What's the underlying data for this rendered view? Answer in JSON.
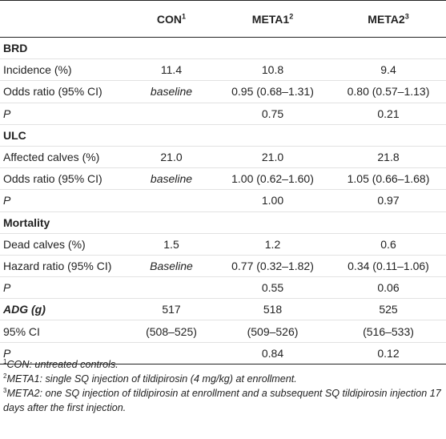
{
  "header": {
    "col0": "",
    "cols": [
      {
        "label": "CON",
        "sup": "1"
      },
      {
        "label": "META1",
        "sup": "2"
      },
      {
        "label": "META2",
        "sup": "3"
      }
    ]
  },
  "rows": [
    {
      "type": "section",
      "label": "BRD",
      "values": [
        "",
        "",
        ""
      ]
    },
    {
      "type": "data",
      "label": "Incidence (%)",
      "values": [
        "11.4",
        "10.8",
        "9.4"
      ]
    },
    {
      "type": "data",
      "label": "Odds ratio (95% CI)",
      "values": [
        "baseline",
        "0.95 (0.68–1.31)",
        "0.80 (0.57–1.13)"
      ],
      "italic_first": true
    },
    {
      "type": "p",
      "label": "P",
      "values": [
        "",
        "0.75",
        "0.21"
      ]
    },
    {
      "type": "section",
      "label": "ULC",
      "values": [
        "",
        "",
        ""
      ]
    },
    {
      "type": "data",
      "label": "Affected calves (%)",
      "values": [
        "21.0",
        "21.0",
        "21.8"
      ]
    },
    {
      "type": "data",
      "label": "Odds ratio (95% CI)",
      "values": [
        "baseline",
        "1.00 (0.62–1.60)",
        "1.05 (0.66–1.68)"
      ],
      "italic_first": true
    },
    {
      "type": "p",
      "label": "P",
      "values": [
        "",
        "1.00",
        "0.97"
      ]
    },
    {
      "type": "section",
      "label": "Mortality",
      "values": [
        "",
        "",
        ""
      ]
    },
    {
      "type": "data",
      "label": "Dead calves (%)",
      "values": [
        "1.5",
        "1.2",
        "0.6"
      ]
    },
    {
      "type": "data",
      "label": "Hazard ratio (95% CI)",
      "values": [
        "Baseline",
        "0.77 (0.32–1.82)",
        "0.34 (0.11–1.06)"
      ],
      "italic_first": true
    },
    {
      "type": "p",
      "label": "P",
      "values": [
        "",
        "0.55",
        "0.06"
      ]
    },
    {
      "type": "section-italic",
      "label": "ADG (g)",
      "values": [
        "517",
        "518",
        "525"
      ]
    },
    {
      "type": "data",
      "label": "95% CI",
      "values": [
        "(508–525)",
        "(509–526)",
        "(516–533)"
      ]
    },
    {
      "type": "p",
      "label": "P",
      "values": [
        "",
        "0.84",
        "0.12"
      ]
    }
  ],
  "footnotes": [
    {
      "sup": "1",
      "text": "CON: untreated controls."
    },
    {
      "sup": "2",
      "text": "META1: single SQ injection of tildipirosin (4 mg/kg) at enrollment."
    },
    {
      "sup": "3",
      "text": "META2: one SQ injection of tildipirosin at enrollment and a subsequent SQ tildipirosin injection 17 days after the first injection."
    }
  ]
}
